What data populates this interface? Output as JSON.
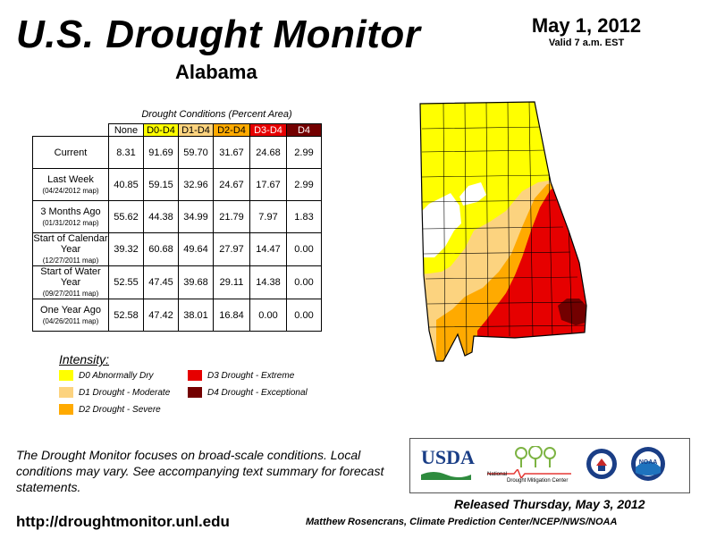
{
  "header": {
    "title": "U.S. Drought Monitor",
    "state": "Alabama",
    "date": "May 1, 2012",
    "valid": "Valid 7 a.m. EST"
  },
  "table": {
    "caption": "Drought Conditions (Percent Area)",
    "columns": [
      "None",
      "D0-D4",
      "D1-D4",
      "D2-D4",
      "D3-D4",
      "D4"
    ],
    "column_colors": [
      "#ffffff",
      "#ffff00",
      "#fcd37f",
      "#ffaa00",
      "#e60000",
      "#730000"
    ],
    "rows": [
      {
        "label": "Current",
        "sub": "",
        "values": [
          "8.31",
          "91.69",
          "59.70",
          "31.67",
          "24.68",
          "2.99"
        ]
      },
      {
        "label": "Last Week",
        "sub": "(04/24/2012 map)",
        "values": [
          "40.85",
          "59.15",
          "32.96",
          "24.67",
          "17.67",
          "2.99"
        ]
      },
      {
        "label": "3 Months Ago",
        "sub": "(01/31/2012 map)",
        "values": [
          "55.62",
          "44.38",
          "34.99",
          "21.79",
          "7.97",
          "1.83"
        ]
      },
      {
        "label": "Start of Calendar Year",
        "sub": "(12/27/2011 map)",
        "values": [
          "39.32",
          "60.68",
          "49.64",
          "27.97",
          "14.47",
          "0.00"
        ]
      },
      {
        "label": "Start of Water Year",
        "sub": "(09/27/2011 map)",
        "values": [
          "52.55",
          "47.45",
          "39.68",
          "29.11",
          "14.38",
          "0.00"
        ]
      },
      {
        "label": "One Year Ago",
        "sub": "(04/26/2011 map)",
        "values": [
          "52.58",
          "47.42",
          "38.01",
          "16.84",
          "0.00",
          "0.00"
        ]
      }
    ]
  },
  "legend": {
    "title": "Intensity:",
    "items": [
      {
        "label": "D0 Abnormally Dry",
        "color": "#ffff00"
      },
      {
        "label": "D1 Drought - Moderate",
        "color": "#fcd37f"
      },
      {
        "label": "D2 Drought - Severe",
        "color": "#ffaa00"
      },
      {
        "label": "D3 Drought - Extreme",
        "color": "#e60000"
      },
      {
        "label": "D4 Drought - Exceptional",
        "color": "#730000"
      }
    ]
  },
  "note": "The Drought Monitor focuses on broad-scale conditions. Local conditions may vary. See accompanying text summary for forecast statements.",
  "footer": {
    "url": "http://droughtmonitor.unl.edu",
    "released": "Released Thursday, May 3, 2012",
    "author": "Matthew Rosencrans, Climate Prediction Center/NCEP/NWS/NOAA"
  },
  "logos": {
    "usda": "USDA",
    "ndmc_line1": "National",
    "ndmc_line2": "Drought Mitigation Center",
    "noaa": "NOAA"
  }
}
